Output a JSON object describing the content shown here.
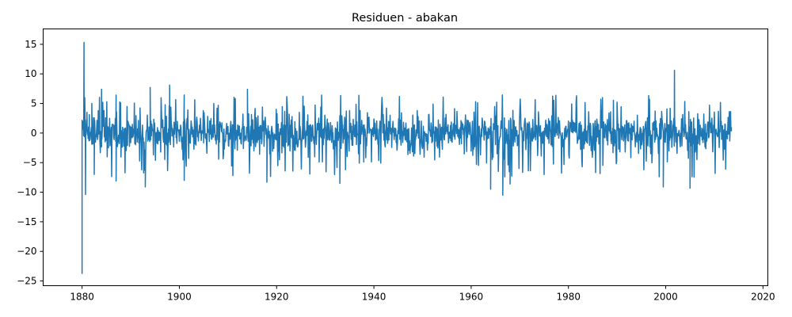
{
  "chart_data": {
    "type": "line",
    "title": "Residuen - abakan",
    "xlabel": "",
    "ylabel": "",
    "xlim": [
      1872,
      2021
    ],
    "ylim": [
      -25.8,
      17.6
    ],
    "x_ticks": [
      1880,
      1900,
      1920,
      1940,
      1960,
      1980,
      2000,
      2020
    ],
    "y_ticks": [
      -25,
      -20,
      -15,
      -10,
      -5,
      0,
      5,
      10,
      15
    ],
    "grid": false,
    "legend": "none",
    "line_color": "#1f77b4",
    "series": [
      {
        "x_start": 1880.0,
        "x_step": 0.0833333,
        "note_points": "monthly residuals, approximate reading of the plotted line",
        "key_points": [
          [
            1880.0,
            -23.8
          ],
          [
            1880.25,
            2.0
          ],
          [
            1880.4,
            15.3
          ],
          [
            1880.55,
            6.0
          ],
          [
            1880.7,
            -10.4
          ],
          [
            1881.0,
            3.5
          ],
          [
            1881.5,
            -1.0
          ],
          [
            1882.0,
            5.0
          ],
          [
            1882.5,
            -7.0
          ],
          [
            1884.0,
            7.4
          ],
          [
            1887.0,
            -8.1
          ],
          [
            1893.0,
            -9.1
          ],
          [
            1894.0,
            7.7
          ],
          [
            1898.0,
            8.1
          ],
          [
            1901.0,
            -8.0
          ],
          [
            1914.0,
            7.4
          ],
          [
            1918.0,
            -8.3
          ],
          [
            1933.0,
            -8.5
          ],
          [
            1964.0,
            -9.5
          ],
          [
            1966.5,
            -10.5
          ],
          [
            1968.0,
            -8.6
          ],
          [
            1999.5,
            -9.1
          ],
          [
            2001.8,
            10.6
          ],
          [
            2005.0,
            -9.3
          ],
          [
            2013.5,
            1.0
          ]
        ]
      }
    ]
  }
}
